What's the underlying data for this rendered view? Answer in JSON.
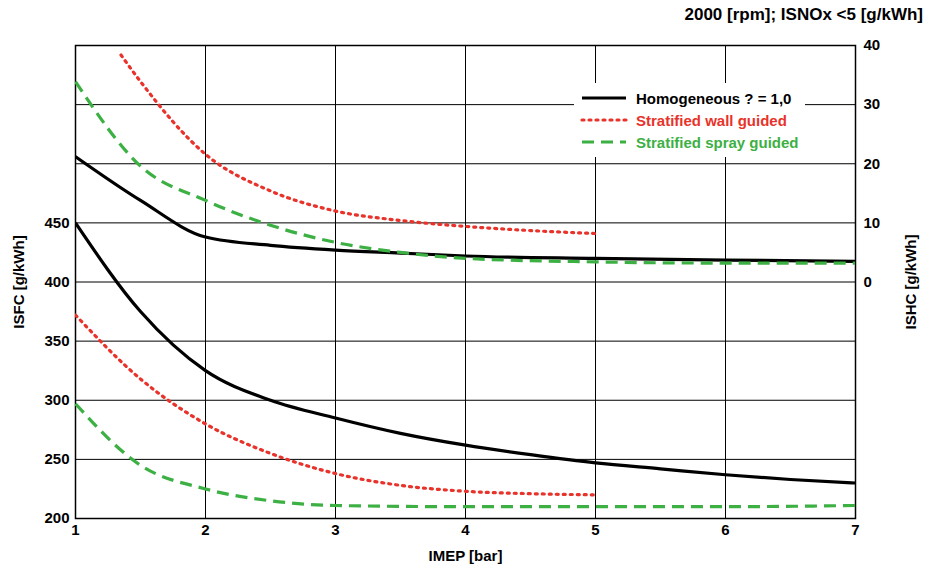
{
  "chart_data": {
    "type": "line",
    "title": "2000 [rpm]; ISNOx <5 [g/kWh]",
    "x_label": "IMEP [bar]",
    "y_label": "ISFC [g/kWh]",
    "y2_label": "ISHC [g/kWh]",
    "xlim": [
      1,
      7
    ],
    "xticks": [
      1,
      2,
      3,
      4,
      5,
      6,
      7
    ],
    "ylim": [
      200,
      600
    ],
    "yticks": [
      200,
      250,
      300,
      350,
      400,
      450
    ],
    "y2lim": [
      -40,
      40
    ],
    "y2ticks": [
      0,
      10,
      20,
      30,
      40
    ],
    "grid": true,
    "legend": "top-right",
    "series": [
      {
        "name": "Homogeneous ? = 1,0",
        "color": "#000000",
        "line_style": "solid",
        "x": [
          1,
          1.5,
          2,
          2.5,
          3,
          3.5,
          4,
          4.5,
          5,
          5.5,
          6,
          6.5,
          7
        ],
        "values": [
          450,
          375,
          325,
          300,
          285,
          272,
          262,
          254,
          247,
          242,
          237,
          233,
          230
        ]
      },
      {
        "name": "Stratified wall guided",
        "color": "#e8322a",
        "line_style": "dotted",
        "x": [
          1,
          1.5,
          2,
          2.5,
          3,
          3.5,
          4,
          4.5,
          5
        ],
        "values": [
          372,
          318,
          280,
          255,
          238,
          228,
          223,
          221,
          220
        ]
      },
      {
        "name": "Stratified spray guided",
        "color": "#3cb043",
        "line_style": "dashed",
        "x": [
          1,
          1.5,
          2,
          2.5,
          3,
          4,
          5,
          6,
          7
        ],
        "values": [
          297,
          245,
          225,
          215,
          211,
          210,
          210,
          210,
          211
        ]
      },
      {
        "name": "Homogeneous ? = 1,0",
        "color": "#000000",
        "line_style": "solid",
        "axis": "y2",
        "x": [
          1,
          1.5,
          2,
          2.5,
          3,
          3.5,
          4,
          5,
          6,
          7
        ],
        "values": [
          21.2,
          13.8,
          7.6,
          6.2,
          5.4,
          4.9,
          4.4,
          4.0,
          3.7,
          3.5
        ]
      },
      {
        "name": "Stratified wall guided",
        "color": "#e8322a",
        "line_style": "dotted",
        "axis": "y2",
        "x": [
          1.35,
          1.5,
          2,
          2.5,
          3,
          3.5,
          4,
          4.5,
          5
        ],
        "values": [
          38.4,
          33.9,
          21.6,
          15.4,
          12,
          10.4,
          9.4,
          8.7,
          8.2
        ]
      },
      {
        "name": "Stratified spray guided",
        "color": "#3cb043",
        "line_style": "dashed",
        "axis": "y2",
        "x": [
          1,
          1.5,
          2,
          2.5,
          3,
          3.5,
          4,
          5,
          6,
          7
        ],
        "values": [
          33.9,
          19.6,
          13.8,
          9.6,
          6.7,
          5,
          4,
          3.4,
          3.2,
          3.2
        ]
      }
    ]
  }
}
